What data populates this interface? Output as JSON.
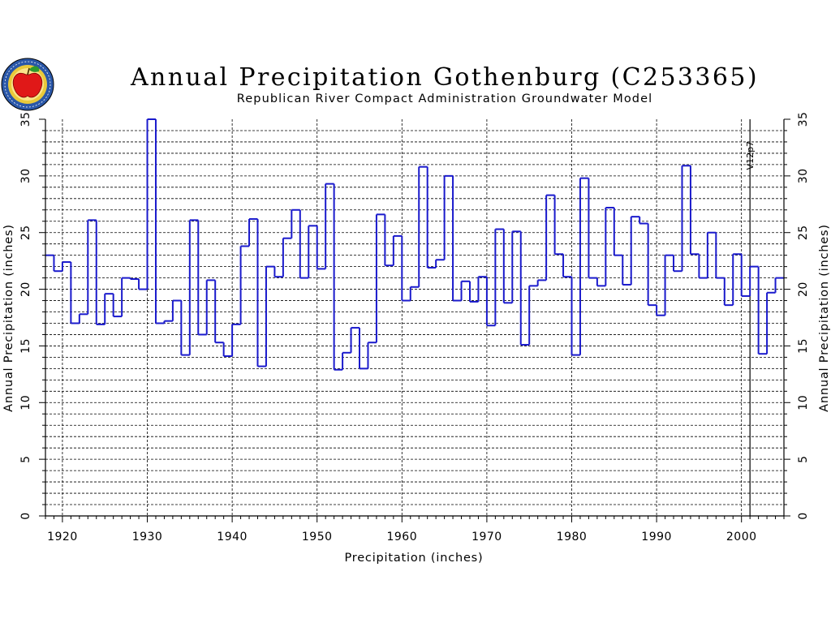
{
  "chart_data": {
    "type": "line",
    "style": "step",
    "title": "Annual Precipitation Gothenburg (C253365)",
    "subtitle": "Republican River Compact Administration Groundwater Model",
    "xlabel": "Precipitation (inches)",
    "ylabel": "Annual Precipitation (inches)",
    "ylabel_right": "Annual Precipitation (inches)",
    "xlim": [
      1918,
      2005
    ],
    "ylim": [
      0,
      35
    ],
    "x_ticks": [
      1920,
      1930,
      1940,
      1950,
      1960,
      1970,
      1980,
      1990,
      2000
    ],
    "y_ticks": [
      0,
      5,
      10,
      15,
      20,
      25,
      30,
      35
    ],
    "y_minor_step": 1,
    "grid": true,
    "annotation": {
      "text": "V12p7",
      "x": 2001
    },
    "colors": {
      "line": "#1a1acc",
      "axis": "#000000",
      "grid": "#000000"
    },
    "series": [
      {
        "x": [
          1918,
          1919,
          1920,
          1921,
          1922,
          1923,
          1924,
          1925,
          1926,
          1927,
          1928,
          1929,
          1930,
          1931,
          1932,
          1933,
          1934,
          1935,
          1936,
          1937,
          1938,
          1939,
          1940,
          1941,
          1942,
          1943,
          1944,
          1945,
          1946,
          1947,
          1948,
          1949,
          1950,
          1951,
          1952,
          1953,
          1954,
          1955,
          1956,
          1957,
          1958,
          1959,
          1960,
          1961,
          1962,
          1963,
          1964,
          1965,
          1966,
          1967,
          1968,
          1969,
          1970,
          1971,
          1972,
          1973,
          1974,
          1975,
          1976,
          1977,
          1978,
          1979,
          1980,
          1981,
          1982,
          1983,
          1984,
          1985,
          1986,
          1987,
          1988,
          1989,
          1990,
          1991,
          1992,
          1993,
          1994,
          1995,
          1996,
          1997,
          1998,
          1999,
          2000,
          2001,
          2002,
          2003,
          2004
        ],
        "values": [
          23.0,
          21.6,
          22.4,
          17.0,
          17.8,
          26.1,
          16.9,
          19.6,
          17.6,
          21.0,
          20.9,
          20.0,
          35.0,
          17.0,
          17.2,
          19.0,
          14.2,
          26.1,
          16.0,
          20.8,
          15.3,
          14.1,
          16.9,
          23.8,
          26.2,
          13.2,
          22.0,
          21.1,
          24.5,
          27.0,
          21.0,
          25.6,
          21.8,
          29.3,
          12.9,
          14.4,
          16.6,
          13.0,
          15.3,
          26.6,
          22.1,
          24.7,
          19.0,
          20.2,
          30.8,
          21.9,
          22.6,
          30.0,
          19.0,
          20.7,
          18.9,
          21.1,
          16.8,
          25.3,
          18.8,
          25.1,
          15.1,
          20.3,
          20.8,
          28.3,
          23.1,
          21.1,
          14.2,
          29.8,
          21.0,
          20.3,
          27.2,
          23.0,
          20.4,
          26.4,
          25.8,
          18.6,
          17.7,
          23.0,
          21.6,
          30.9,
          23.1,
          21.0,
          25.0,
          21.0,
          18.6,
          23.1,
          19.4,
          22.0,
          14.3,
          19.7,
          21.0
        ]
      }
    ]
  },
  "logo": {
    "name": "rrca-apple-seal"
  }
}
